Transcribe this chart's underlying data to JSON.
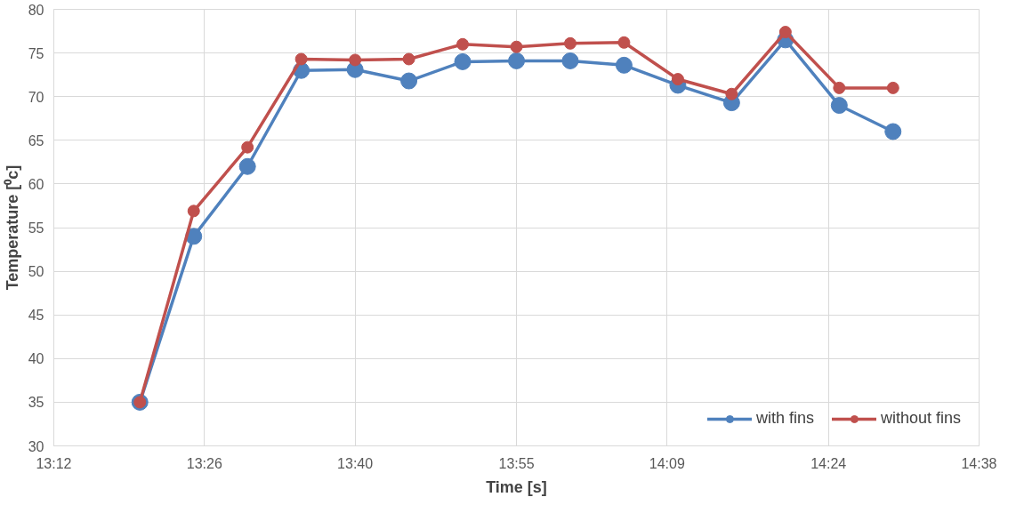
{
  "chart_data": {
    "type": "line",
    "xlabel": "Time [s]",
    "ylabel": "Temperature [⁰c]",
    "x": [
      13.3333,
      13.4167,
      13.5,
      13.5833,
      13.6667,
      13.75,
      13.8333,
      13.9167,
      14.0,
      14.0833,
      14.1667,
      14.25,
      14.3333,
      14.4167,
      14.5
    ],
    "series": [
      {
        "name": "with fins",
        "color": "#4f81bd",
        "values": [
          35,
          54,
          62,
          73,
          73.1,
          71.8,
          74,
          74.1,
          74.1,
          73.6,
          71.3,
          69.3,
          76.5,
          69,
          66
        ]
      },
      {
        "name": "without fins",
        "color": "#c0504d",
        "values": [
          35,
          56.9,
          64.2,
          74.3,
          74.2,
          74.3,
          76,
          75.7,
          76.1,
          76.2,
          72,
          70.3,
          77.4,
          71,
          71
        ]
      }
    ],
    "xlim": [
      13.2,
      14.6333
    ],
    "xticks": [
      {
        "value": 13.2,
        "label": "13:12"
      },
      {
        "value": 13.4333,
        "label": "13:26"
      },
      {
        "value": 13.6667,
        "label": "13:40"
      },
      {
        "value": 13.9167,
        "label": "13:55"
      },
      {
        "value": 14.15,
        "label": "14:09"
      },
      {
        "value": 14.4,
        "label": "14:24"
      },
      {
        "value": 14.6333,
        "label": "14:38"
      }
    ],
    "ylim": [
      30,
      80
    ],
    "yticks": [
      30,
      35,
      40,
      45,
      50,
      55,
      60,
      65,
      70,
      75,
      80
    ],
    "grid": true,
    "legend": "bottom right",
    "marker": "circle",
    "line_style": "solid"
  }
}
